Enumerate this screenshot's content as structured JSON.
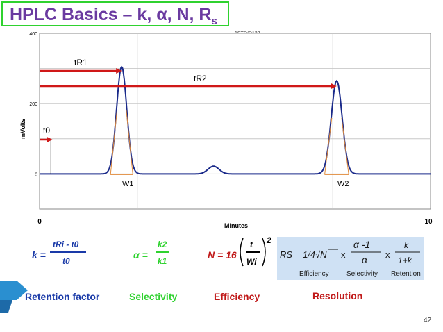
{
  "slide": {
    "title_main": "HPLC Basics – k, α, N, R",
    "title_sub": "s",
    "page_number": "42"
  },
  "colors": {
    "title": "#6a3aa0",
    "title_border": "#2fd22f",
    "chromatogram": "#1a2a8a",
    "retention_arrows": "#d01818",
    "k_label": "#1a3aa8",
    "alpha_label": "#2fd22f",
    "n_label": "#c01818",
    "rs_label": "#c01818",
    "rs_box": "#cfe1f4"
  },
  "chart_data": {
    "type": "line",
    "title": "",
    "header_text": "1STD/D122",
    "xlabel": "Minutes",
    "ylabel": "mVolts",
    "xlim": [
      0,
      10
    ],
    "ylim": [
      -100,
      400
    ],
    "x_ticks": [
      "0",
      "10"
    ],
    "y_ticks": [
      "400",
      "200",
      "0"
    ],
    "grid": true,
    "baseline": 0,
    "peaks": [
      {
        "center": 2.1,
        "height": 305,
        "width": 0.13
      },
      {
        "center": 4.45,
        "height": 22,
        "width": 0.14
      },
      {
        "center": 7.6,
        "height": 265,
        "width": 0.14
      }
    ],
    "annotations": {
      "t0": "t0",
      "tR1": "tR1",
      "tR2": "tR2",
      "w1": "W1",
      "w2": "W2"
    }
  },
  "formulas": {
    "k": {
      "lhs": "k =",
      "numerator": "tRi - t0",
      "denominator": "t0"
    },
    "alpha": {
      "lhs": "α =",
      "numerator": "k2",
      "denominator": "k1"
    },
    "n": {
      "lhs": "N = 16",
      "numerator": "t",
      "denominator": "Wi",
      "exponent": "2"
    },
    "rs": {
      "lhs": "RS = 1/4√N",
      "x1": "x",
      "alpha_num": "α -1",
      "alpha_den": "α",
      "x2": "x",
      "k_num": "k",
      "k_den": "1+k",
      "labels": [
        "Efficiency",
        "Selectivity",
        "Retention"
      ]
    }
  },
  "categories": {
    "retention": "Retention factor",
    "selectivity": "Selectivity",
    "efficiency": "Efficiency",
    "resolution": "Resolution"
  }
}
